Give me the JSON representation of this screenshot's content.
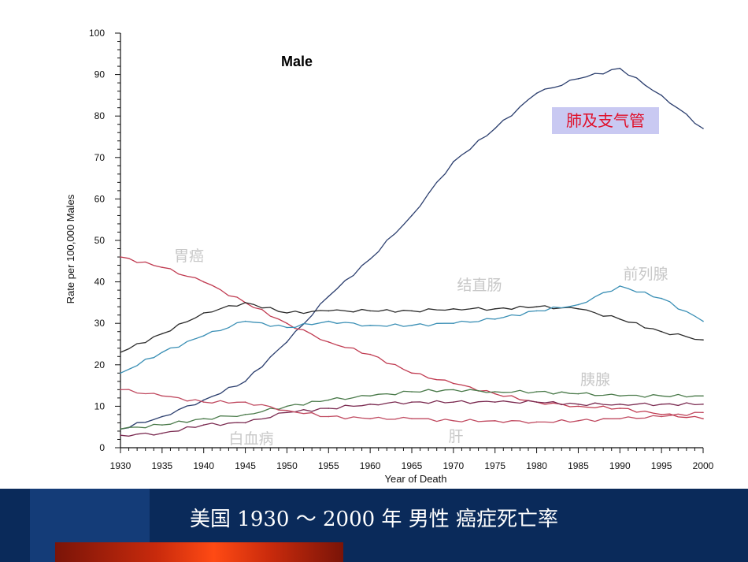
{
  "colors": {
    "lung": "#2b3e6e",
    "stomach": "#c03a50",
    "colorectal": "#2a2a2a",
    "prostate": "#3a8fb5",
    "pancreas": "#4a7a4a",
    "leukemia": "#7a2a50",
    "liver": "#c04a60",
    "label_gray": "#c8c8c8",
    "footer_bg": "#0a2a5a"
  },
  "chart_data": {
    "type": "line",
    "title": "Male",
    "xlabel": "Year of Death",
    "ylabel": "Rate per 100,000 Males",
    "xlim": [
      1930,
      2000
    ],
    "ylim": [
      0,
      100
    ],
    "xticks": [
      "1930",
      "1935",
      "1940",
      "1945",
      "1950",
      "1955",
      "1960",
      "1965",
      "1970",
      "1975",
      "1980",
      "1985",
      "1990",
      "1995",
      "2000"
    ],
    "yticks": [
      "0",
      "10",
      "20",
      "30",
      "40",
      "50",
      "60",
      "70",
      "80",
      "90",
      "100"
    ],
    "x": [
      1930,
      1935,
      1940,
      1945,
      1950,
      1955,
      1960,
      1965,
      1970,
      1975,
      1980,
      1985,
      1990,
      1995,
      2000
    ],
    "series": [
      {
        "key": "lung",
        "name": "肺及支气管",
        "values": [
          4.5,
          7.5,
          11.5,
          16,
          25.5,
          36.5,
          45.5,
          56,
          69,
          77,
          85.5,
          89,
          91.5,
          85,
          77
        ]
      },
      {
        "key": "stomach",
        "name": "胃癌",
        "values": [
          46,
          43.5,
          40,
          35,
          30,
          25.5,
          22.5,
          18,
          15.5,
          13,
          11,
          10,
          9.5,
          8,
          7
        ]
      },
      {
        "key": "colorectal",
        "name": "结直肠",
        "values": [
          23,
          27.5,
          32.5,
          35,
          32.5,
          33,
          33,
          33,
          33.5,
          33.5,
          34,
          33.5,
          31,
          28,
          26
        ]
      },
      {
        "key": "prostate",
        "name": "前列腺",
        "values": [
          18,
          23,
          27,
          30.5,
          29,
          30.5,
          29.5,
          29.5,
          30,
          31,
          33,
          34.5,
          39,
          36,
          30.5
        ]
      },
      {
        "key": "pancreas",
        "name": "胰腺",
        "values": [
          4.5,
          5.5,
          7,
          8,
          10,
          11.5,
          12.5,
          13.5,
          14,
          13.5,
          13.5,
          13,
          12.5,
          12.5,
          12.5
        ]
      },
      {
        "key": "leukemia",
        "name": "白血病",
        "values": [
          3,
          3.5,
          5.5,
          6,
          8.5,
          9.5,
          10.5,
          11,
          11,
          11,
          11,
          10.5,
          10.5,
          10.5,
          10.5
        ]
      },
      {
        "key": "liver",
        "name": "肝",
        "values": [
          14,
          12.5,
          11,
          11,
          9,
          7.5,
          7,
          7,
          6.5,
          6.5,
          6.2,
          6.5,
          7,
          7.5,
          8.5
        ]
      }
    ]
  },
  "footer": {
    "title": "美国 1930 ～ 2000 年  男性  癌症死亡率"
  }
}
